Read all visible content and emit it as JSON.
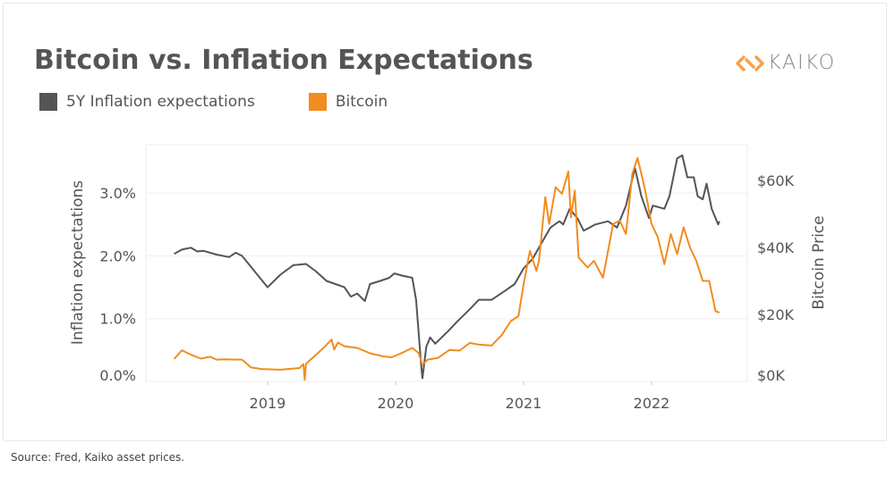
{
  "chart_data": {
    "type": "line",
    "title": "Bitcoin vs. Inflation Expectations",
    "source": "Source: Fred, Kaiko asset prices.",
    "logo_text": "KAIKO",
    "ylabel": "Inflation expectations",
    "y2label": "Bitcoin Price",
    "ylim": [
      0,
      3.8
    ],
    "y2lim": [
      0,
      72
    ],
    "xlim": [
      2018.0,
      2022.75
    ],
    "x_ticks": [
      {
        "v": 2019,
        "label": "2019"
      },
      {
        "v": 2020,
        "label": "2020"
      },
      {
        "v": 2021,
        "label": "2021"
      },
      {
        "v": 2022,
        "label": "2022"
      }
    ],
    "y_ticks": [
      {
        "v": 0,
        "label": "0.0%"
      },
      {
        "v": 1,
        "label": "1.0%"
      },
      {
        "v": 2,
        "label": "2.0%"
      },
      {
        "v": 3,
        "label": "3.0%"
      }
    ],
    "y2_ticks": [
      {
        "v": 0,
        "label": "$0K"
      },
      {
        "v": 20,
        "label": "$20K"
      },
      {
        "v": 40,
        "label": "$40K"
      },
      {
        "v": 60,
        "label": "$60K"
      }
    ],
    "grid": true,
    "legend_position": "top-left",
    "series": [
      {
        "name": "5Y Inflation expectations",
        "axis": "left",
        "color": "#555555",
        "x": [
          2018.27,
          2018.33,
          2018.4,
          2018.45,
          2018.5,
          2018.6,
          2018.7,
          2018.75,
          2018.8,
          2018.9,
          2019.0,
          2019.1,
          2019.2,
          2019.3,
          2019.38,
          2019.46,
          2019.53,
          2019.6,
          2019.65,
          2019.7,
          2019.76,
          2019.8,
          2019.88,
          2019.95,
          2019.99,
          2020.06,
          2020.13,
          2020.16,
          2020.2,
          2020.21,
          2020.24,
          2020.27,
          2020.31,
          2020.41,
          2020.48,
          2020.58,
          2020.65,
          2020.75,
          2020.86,
          2020.93,
          2021.0,
          2021.07,
          2021.14,
          2021.21,
          2021.28,
          2021.31,
          2021.36,
          2021.42,
          2021.47,
          2021.56,
          2021.66,
          2021.73,
          2021.8,
          2021.87,
          2021.92,
          2021.98,
          2022.01,
          2022.1,
          2022.14,
          2022.2,
          2022.24,
          2022.28,
          2022.33,
          2022.36,
          2022.4,
          2022.43,
          2022.47,
          2022.52,
          2022.53
        ],
        "values": [
          2.03,
          2.1,
          2.13,
          2.07,
          2.08,
          2.02,
          1.98,
          2.05,
          2.0,
          1.75,
          1.5,
          1.7,
          1.85,
          1.87,
          1.75,
          1.6,
          1.55,
          1.5,
          1.35,
          1.4,
          1.28,
          1.55,
          1.6,
          1.65,
          1.72,
          1.68,
          1.65,
          1.3,
          0.25,
          0.05,
          0.55,
          0.7,
          0.6,
          0.8,
          0.95,
          1.15,
          1.3,
          1.3,
          1.45,
          1.55,
          1.8,
          1.95,
          2.2,
          2.45,
          2.55,
          2.5,
          2.75,
          2.6,
          2.4,
          2.5,
          2.55,
          2.45,
          2.8,
          3.4,
          2.95,
          2.6,
          2.8,
          2.75,
          2.95,
          3.55,
          3.6,
          3.25,
          3.25,
          2.95,
          2.9,
          3.15,
          2.75,
          2.5,
          2.55
        ]
      },
      {
        "name": "Bitcoin",
        "axis": "right",
        "color": "#f28c1e",
        "x": [
          2018.27,
          2018.33,
          2018.4,
          2018.48,
          2018.55,
          2018.6,
          2018.67,
          2018.8,
          2018.87,
          2018.95,
          2019.1,
          2019.25,
          2019.28,
          2019.29,
          2019.3,
          2019.38,
          2019.45,
          2019.5,
          2019.52,
          2019.55,
          2019.6,
          2019.7,
          2019.8,
          2019.9,
          2019.97,
          2020.05,
          2020.13,
          2020.18,
          2020.21,
          2020.25,
          2020.33,
          2020.42,
          2020.5,
          2020.58,
          2020.65,
          2020.75,
          2020.83,
          2020.9,
          2020.96,
          2021.0,
          2021.05,
          2021.1,
          2021.12,
          2021.17,
          2021.2,
          2021.25,
          2021.3,
          2021.35,
          2021.37,
          2021.4,
          2021.43,
          2021.5,
          2021.55,
          2021.62,
          2021.7,
          2021.75,
          2021.8,
          2021.85,
          2021.89,
          2021.92,
          2021.95,
          2022.0,
          2022.05,
          2022.1,
          2022.15,
          2022.2,
          2022.25,
          2022.3,
          2022.35,
          2022.4,
          2022.45,
          2022.5,
          2022.53
        ],
        "values": [
          6.7,
          9.3,
          8.0,
          6.8,
          7.4,
          6.5,
          6.6,
          6.5,
          4.2,
          3.7,
          3.5,
          4.0,
          5.2,
          0.5,
          5.3,
          8.0,
          10.5,
          12.5,
          9.5,
          11.6,
          10.5,
          10.0,
          8.4,
          7.5,
          7.2,
          8.5,
          10.0,
          8.5,
          5.0,
          6.5,
          7.0,
          9.4,
          9.2,
          11.5,
          11.0,
          10.7,
          13.9,
          18.0,
          19.5,
          29.0,
          39.0,
          33.0,
          36.0,
          55.0,
          47.0,
          58.0,
          56.0,
          62.7,
          49.0,
          57.0,
          37.0,
          34.0,
          36.0,
          31.0,
          47.0,
          48.0,
          44.0,
          62.0,
          66.7,
          62.0,
          57.0,
          47.0,
          43.0,
          35.0,
          44.0,
          38.0,
          46.0,
          40.0,
          36.0,
          30.0,
          30.0,
          21.0,
          20.5
        ]
      }
    ]
  }
}
